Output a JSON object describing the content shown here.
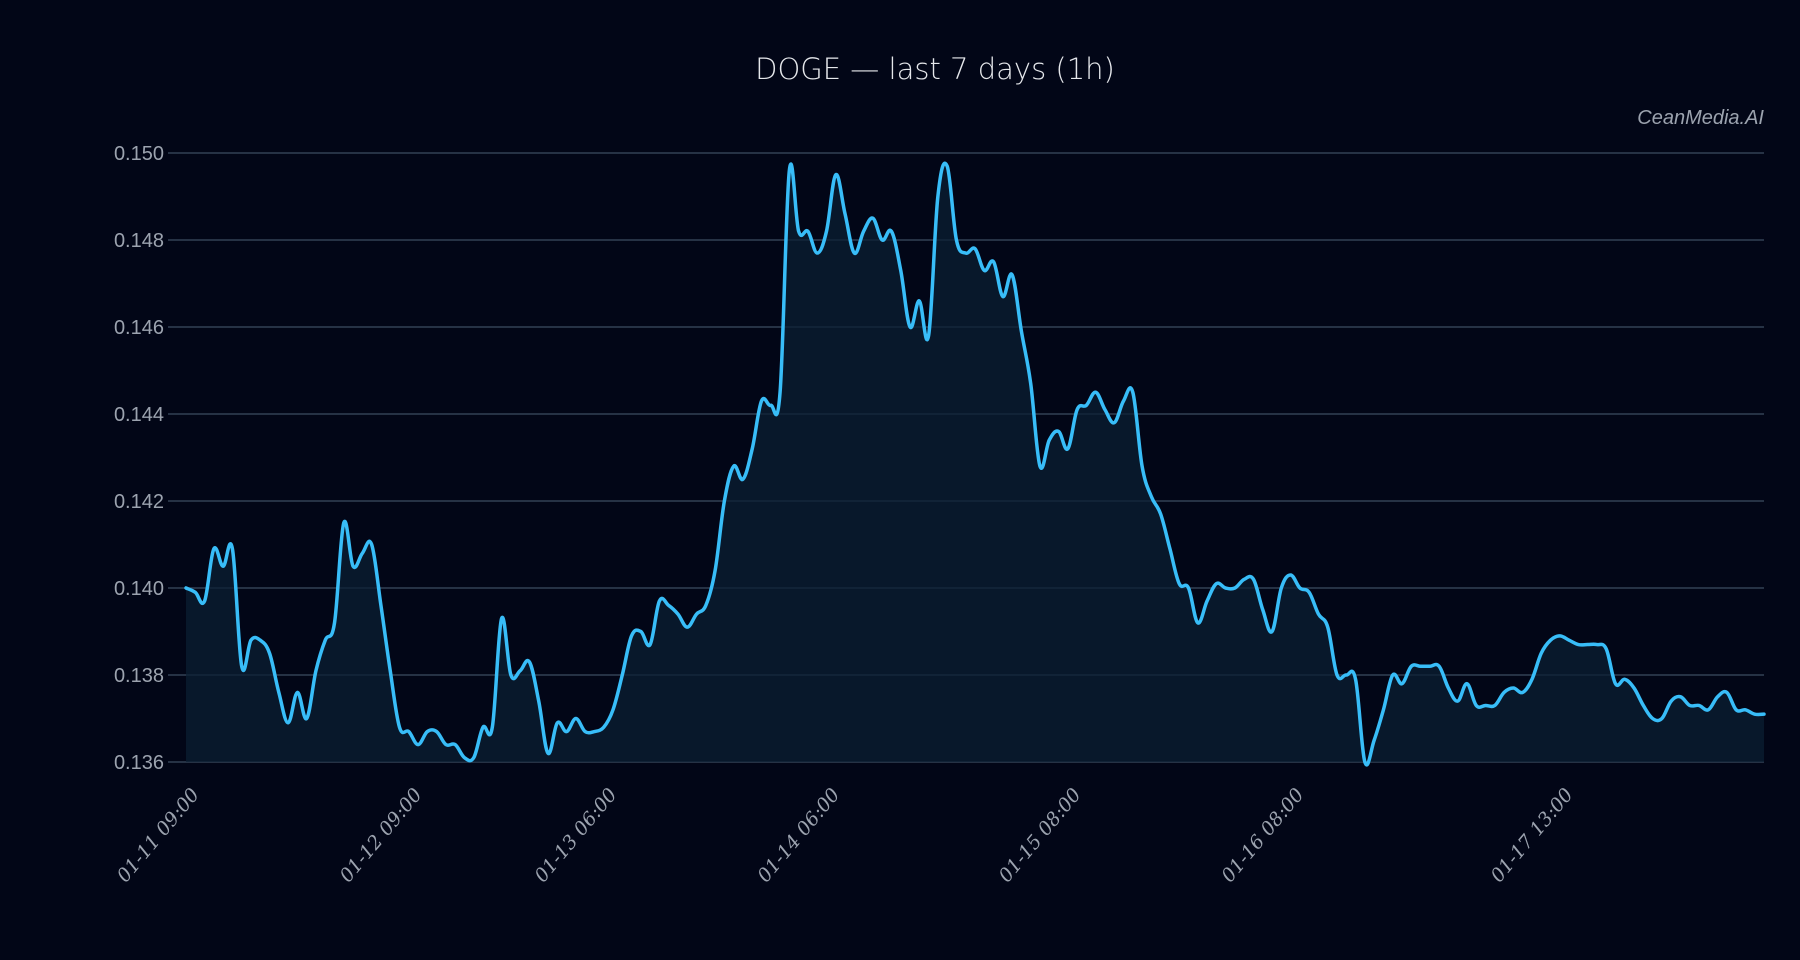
{
  "title": "DOGE — last 7 days (1h)",
  "watermark": "CeanMedia.AI",
  "colors": {
    "background": "#020617",
    "line": "#38bdf8",
    "fill": "#0b1f33",
    "grid": "#334155",
    "tick_text": "#9ca3af",
    "title_text": "#e5e7eb"
  },
  "chart_data": {
    "type": "area",
    "title": "DOGE — last 7 days (1h)",
    "xlabel": "",
    "ylabel": "",
    "ylim": [
      0.136,
      0.15
    ],
    "yticks": [
      "0.150",
      "0.148",
      "0.146",
      "0.144",
      "0.142",
      "0.140",
      "0.138",
      "0.136"
    ],
    "xticks": [
      {
        "label": "01-11 09:00",
        "index": 0
      },
      {
        "label": "01-12 09:00",
        "index": 24
      },
      {
        "label": "01-13 06:00",
        "index": 45
      },
      {
        "label": "01-14 06:00",
        "index": 69
      },
      {
        "label": "01-15 08:00",
        "index": 95
      },
      {
        "label": "01-16 08:00",
        "index": 119
      },
      {
        "label": "01-17 13:00",
        "index": 148
      }
    ],
    "grid": true,
    "legend": null,
    "series": [
      {
        "name": "DOGE",
        "values": [
          0.14,
          0.1399,
          0.1397,
          0.1409,
          0.1405,
          0.1409,
          0.1382,
          0.1388,
          0.1388,
          0.1385,
          0.1376,
          0.1369,
          0.1376,
          0.137,
          0.1381,
          0.1388,
          0.1392,
          0.1415,
          0.1405,
          0.1408,
          0.141,
          0.1396,
          0.1381,
          0.1368,
          0.1367,
          0.1364,
          0.1367,
          0.1367,
          0.1364,
          0.1364,
          0.1361,
          0.1361,
          0.1368,
          0.1368,
          0.1393,
          0.138,
          0.1381,
          0.1383,
          0.1374,
          0.1362,
          0.1369,
          0.1367,
          0.137,
          0.1367,
          0.1367,
          0.1368,
          0.1372,
          0.138,
          0.1389,
          0.139,
          0.1387,
          0.1397,
          0.1396,
          0.1394,
          0.1391,
          0.1394,
          0.1396,
          0.1404,
          0.142,
          0.1428,
          0.1425,
          0.1432,
          0.1443,
          0.1442,
          0.1445,
          0.1496,
          0.1482,
          0.1482,
          0.1477,
          0.1482,
          0.1495,
          0.1486,
          0.1477,
          0.1482,
          0.1485,
          0.148,
          0.1482,
          0.1473,
          0.146,
          0.1466,
          0.1458,
          0.149,
          0.1497,
          0.148,
          0.1477,
          0.1478,
          0.1473,
          0.1475,
          0.1467,
          0.1472,
          0.1459,
          0.1447,
          0.1428,
          0.1434,
          0.1436,
          0.1432,
          0.1441,
          0.1442,
          0.1445,
          0.1441,
          0.1438,
          0.1443,
          0.1445,
          0.1428,
          0.1421,
          0.1417,
          0.1409,
          0.1401,
          0.14,
          0.1392,
          0.1397,
          0.1401,
          0.14,
          0.14,
          0.1402,
          0.1402,
          0.1395,
          0.139,
          0.14,
          0.1403,
          0.14,
          0.1399,
          0.1394,
          0.1391,
          0.138,
          0.138,
          0.1379,
          0.136,
          0.1365,
          0.1372,
          0.138,
          0.1378,
          0.1382,
          0.1382,
          0.1382,
          0.1382,
          0.1377,
          0.1374,
          0.1378,
          0.1373,
          0.1373,
          0.1373,
          0.1376,
          0.1377,
          0.1376,
          0.1379,
          0.1385,
          0.1388,
          0.1389,
          0.1388,
          0.1387,
          0.1387,
          0.1387,
          0.1386,
          0.1378,
          0.1379,
          0.1377,
          0.1373,
          0.137,
          0.137,
          0.1374,
          0.1375,
          0.1373,
          0.1373,
          0.1372,
          0.1375,
          0.1376,
          0.1372,
          0.1372,
          0.1371,
          0.1371
        ]
      }
    ]
  }
}
